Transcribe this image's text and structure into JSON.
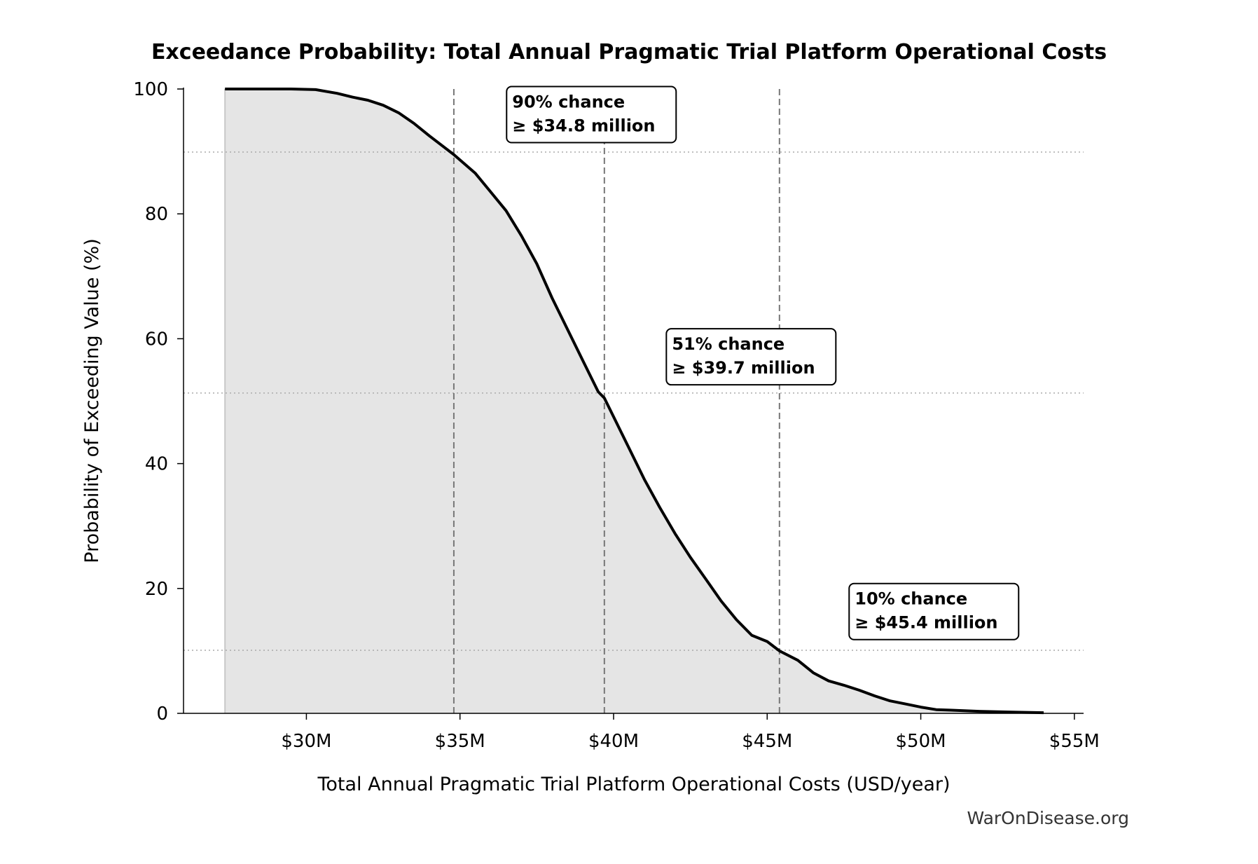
{
  "chart_data": {
    "type": "area",
    "title": "Exceedance Probability: Total Annual Pragmatic Trial Platform Operational Costs",
    "xlabel": "Total Annual Pragmatic Trial Platform Operational Costs (USD/year)",
    "ylabel": "Probability of Exceeding Value (%)",
    "xlim": [
      26,
      55.3
    ],
    "ylim": [
      0,
      100
    ],
    "x_ticks": [
      {
        "value": 30,
        "label": "$30M"
      },
      {
        "value": 35,
        "label": "$35M"
      },
      {
        "value": 40,
        "label": "$40M"
      },
      {
        "value": 45,
        "label": "$45M"
      },
      {
        "value": 50,
        "label": "$50M"
      },
      {
        "value": 55,
        "label": "$55M"
      }
    ],
    "y_ticks": [
      {
        "value": 0,
        "label": "0"
      },
      {
        "value": 20,
        "label": "20"
      },
      {
        "value": 40,
        "label": "40"
      },
      {
        "value": 60,
        "label": "60"
      },
      {
        "value": 80,
        "label": "80"
      },
      {
        "value": 100,
        "label": "100"
      }
    ],
    "series": [
      {
        "x": [
          27.35,
          28.5,
          29.5,
          30.3,
          31.0,
          31.5,
          32.0,
          32.5,
          33.0,
          33.5,
          34.0,
          34.8,
          35.5,
          36.0,
          36.5,
          37.0,
          37.5,
          38.0,
          38.5,
          39.0,
          39.5,
          39.7,
          40.0,
          40.5,
          41.0,
          41.5,
          42.0,
          42.5,
          43.0,
          43.5,
          44.0,
          44.5,
          45.0,
          45.4,
          46.0,
          46.5,
          47.0,
          47.5,
          48.0,
          48.5,
          49.0,
          49.5,
          50.0,
          50.5,
          51.0,
          52.0,
          53.0,
          54.0
        ],
        "y": [
          100,
          100,
          100,
          99.9,
          99.3,
          98.7,
          98.2,
          97.4,
          96.2,
          94.5,
          92.5,
          89.5,
          86.5,
          83.5,
          80.5,
          76.5,
          72.0,
          66.5,
          61.5,
          56.5,
          51.5,
          50.5,
          47.5,
          42.5,
          37.5,
          33.0,
          28.8,
          25.0,
          21.5,
          18.0,
          15.0,
          12.5,
          11.5,
          10.0,
          8.5,
          6.5,
          5.2,
          4.5,
          3.7,
          2.8,
          2.0,
          1.5,
          1.0,
          0.6,
          0.5,
          0.3,
          0.2,
          0.1
        ]
      }
    ],
    "reference_lines": [
      {
        "x": 34.8,
        "y": 89.9
      },
      {
        "x": 39.7,
        "y": 51.3
      },
      {
        "x": 45.4,
        "y": 10.1
      }
    ],
    "annotations": [
      {
        "line1": "90% chance",
        "line2": "≥ $34.8 million",
        "x": 36.7,
        "y": 98.6
      },
      {
        "line1": "51% chance",
        "line2": "≥ $39.7 million",
        "x": 41.9,
        "y": 59.8
      },
      {
        "line1": "10% chance",
        "line2": "≥ $45.4 million",
        "x": 47.85,
        "y": 19.0
      }
    ],
    "grid": false,
    "watermark": "WarOnDisease.org",
    "colors": {
      "line": "#000000",
      "fill": "#e5e5e5",
      "reference": "#777777",
      "hgrid": "#aaaaaa"
    }
  }
}
